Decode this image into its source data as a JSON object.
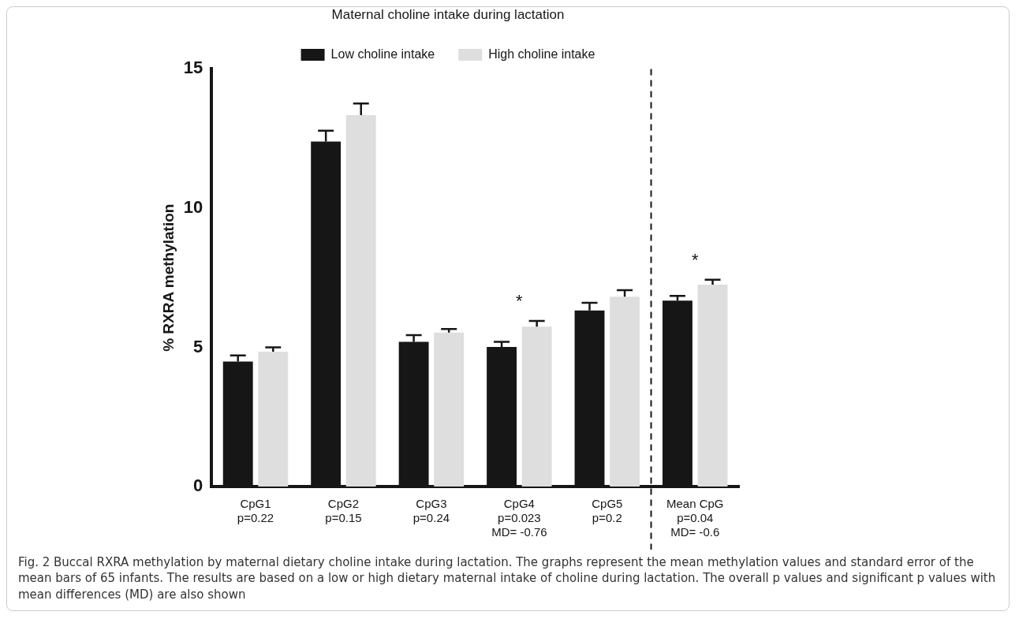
{
  "chart_data": {
    "type": "bar",
    "legend_title": "Maternal choline intake during lactation",
    "ylabel": "% RXRA methylation",
    "categories": [
      "CpG1\np=0.22",
      "CpG2\np=0.15",
      "CpG3\np=0.24",
      "CpG4\np=0.023\nMD= -0.76",
      "CpG5\np=0.2",
      "Mean CpG\np=0.04\nMD= -0.6"
    ],
    "series": [
      {
        "name": "Low choline intake",
        "color": "#161616",
        "values": [
          4.49,
          12.39,
          5.2,
          5.01,
          6.32,
          6.68
        ],
        "errors": [
          [
            4.49,
            4.71
          ],
          [
            12.39,
            12.78
          ],
          [
            5.2,
            5.44
          ],
          [
            5.01,
            5.2
          ],
          [
            6.32,
            6.6
          ],
          [
            6.68,
            6.85
          ]
        ]
      },
      {
        "name": "High choline intake",
        "color": "#dedede",
        "values": [
          4.84,
          13.34,
          5.53,
          5.74,
          6.82,
          7.25
        ],
        "errors": [
          [
            4.84,
            5.0
          ],
          [
            13.34,
            13.76
          ],
          [
            5.53,
            5.66
          ],
          [
            5.74,
            5.95
          ],
          [
            6.82,
            7.05
          ],
          [
            7.25,
            7.43
          ]
        ]
      }
    ],
    "ylim": [
      0,
      15
    ],
    "yticks": [
      0,
      5,
      10,
      15
    ],
    "grid": false,
    "legend": "top",
    "annotations": [
      {
        "text": "*",
        "x": "CpG4\np=0.023\nMD= -0.76",
        "y": 5.74
      },
      {
        "text": "*",
        "x": "Mean CpG\np=0.04\nMD= -0.6",
        "y": 7.25
      },
      "Fig. 2 Buccal RXRA methylation by maternal dietary choline intake during lactation. The graphs represent the mean methylation values and standard error of the mean bars of 65 infants. The results are based on a low or high dietary maternal intake of choline during lactation. The overall p values and significant p values with mean differences (MD) are also shown"
    ]
  }
}
